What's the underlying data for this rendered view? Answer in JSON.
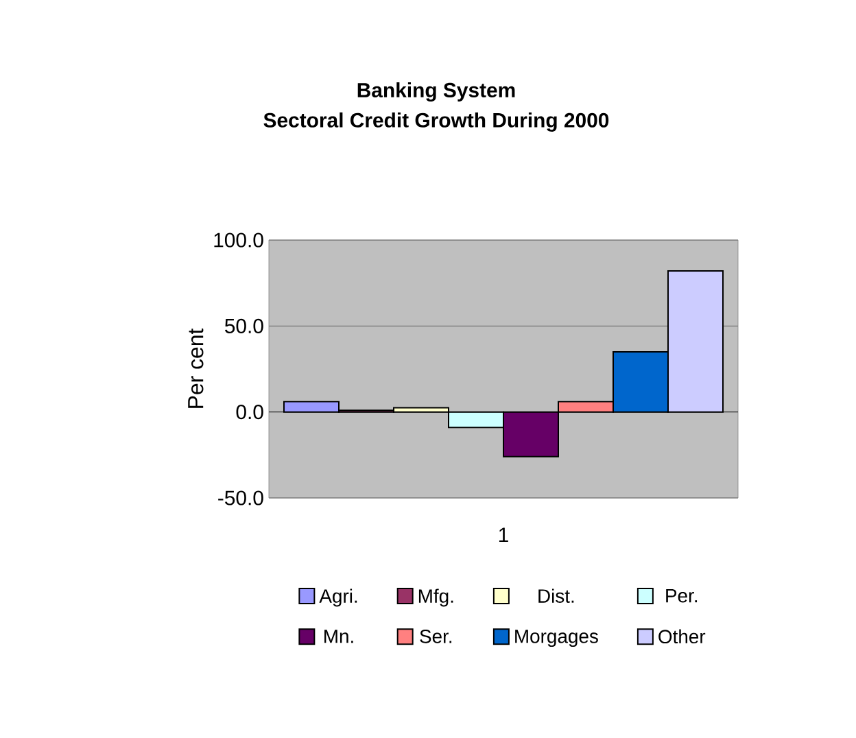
{
  "chart_data": {
    "type": "bar",
    "title": "Banking System\nSectoral Credit Growth During 2000",
    "ylabel": "Per cent",
    "categories": [
      "1"
    ],
    "series": [
      {
        "name": "Agri.",
        "color": "#9999ff",
        "values": [
          6
        ]
      },
      {
        "name": "Mfg.",
        "color": "#993366",
        "values": [
          1
        ]
      },
      {
        "name": "Dist.",
        "color": "#ffffcc",
        "values": [
          2.5
        ]
      },
      {
        "name": "Per.",
        "color": "#ccffff",
        "values": [
          -9
        ]
      },
      {
        "name": "Mn.",
        "color": "#660066",
        "values": [
          -26
        ]
      },
      {
        "name": "Ser.",
        "color": "#ff8080",
        "values": [
          6
        ]
      },
      {
        "name": "Morgages",
        "color": "#0066cc",
        "values": [
          35
        ]
      },
      {
        "name": "Other",
        "color": "#ccccff",
        "values": [
          82
        ]
      }
    ],
    "ylim": [
      -50,
      100
    ],
    "yticks": [
      {
        "value": -50,
        "label": "-50.0"
      },
      {
        "value": 0,
        "label": "0.0"
      },
      {
        "value": 50,
        "label": "50.0"
      },
      {
        "value": 100,
        "label": "100.0"
      }
    ],
    "grid": "y",
    "legend": "bottom"
  }
}
